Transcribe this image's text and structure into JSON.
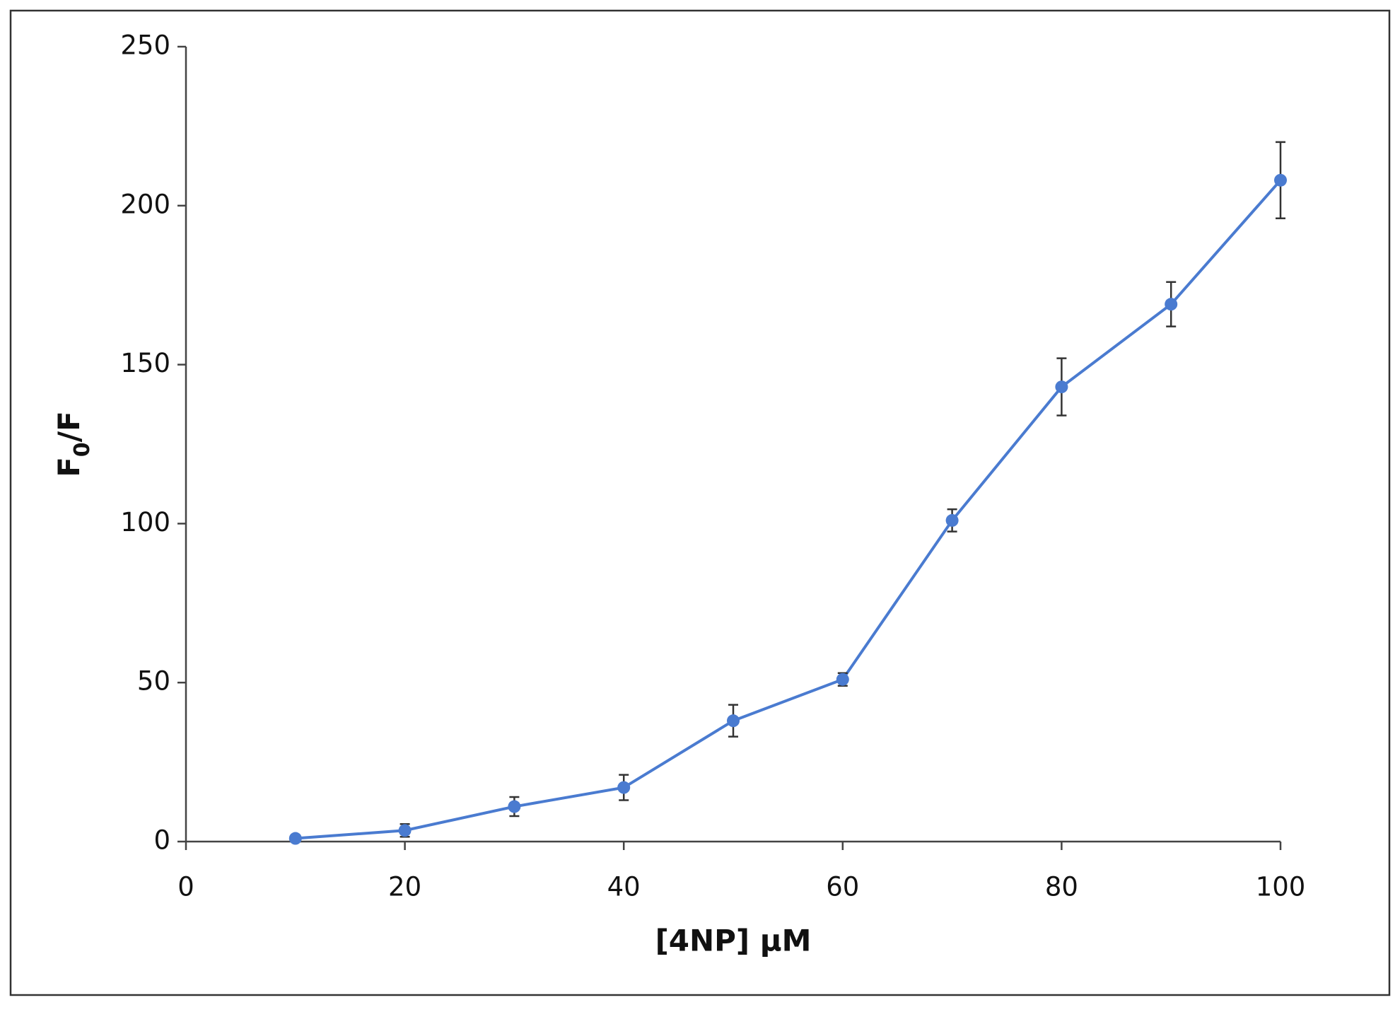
{
  "chart_data": {
    "type": "line",
    "xlabel": "[4NP] µM",
    "ylabel": [
      "F",
      "0",
      "/F"
    ],
    "x": [
      10,
      20,
      30,
      40,
      50,
      60,
      70,
      80,
      90,
      100
    ],
    "series": [
      {
        "color": "#4a7bd0",
        "values": [
          1,
          3.5,
          11,
          17,
          38,
          51,
          101,
          143,
          169,
          208
        ],
        "errors": [
          0.5,
          2,
          3,
          4,
          5,
          2,
          3.5,
          9,
          7,
          12
        ]
      }
    ],
    "xlim": [
      0,
      100
    ],
    "xticks": [
      0,
      20,
      40,
      60,
      80,
      100
    ],
    "ylim": [
      0,
      250
    ],
    "yticks": [
      0,
      50,
      100,
      150,
      200,
      250
    ],
    "grid": false
  }
}
